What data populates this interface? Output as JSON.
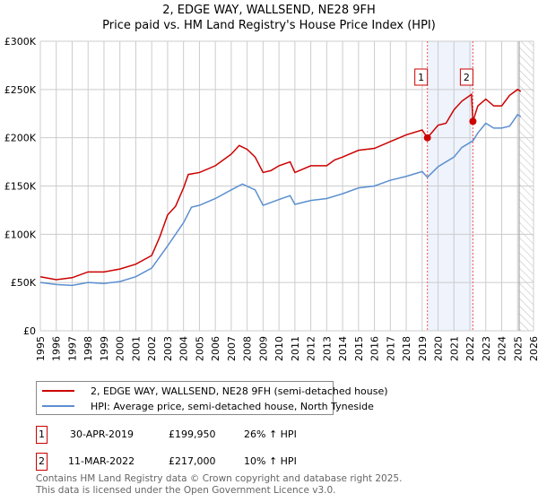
{
  "title": "2, EDGE WAY, WALLSEND, NE28 9FH",
  "subtitle": "Price paid vs. HM Land Registry's House Price Index (HPI)",
  "chart_data": {
    "type": "line",
    "xlim": [
      1995,
      2026
    ],
    "ylim": [
      0,
      300000
    ],
    "yticks": [
      0,
      50000,
      100000,
      150000,
      200000,
      250000,
      300000
    ],
    "ytick_labels": [
      "£0",
      "£50K",
      "£100K",
      "£150K",
      "£200K",
      "£250K",
      "£300K"
    ],
    "xtick_labels": [
      "1995",
      "1996",
      "1997",
      "1998",
      "1999",
      "2000",
      "2001",
      "2002",
      "2003",
      "2004",
      "2005",
      "2006",
      "2007",
      "2008",
      "2009",
      "2010",
      "2011",
      "2012",
      "2013",
      "2014",
      "2015",
      "2016",
      "2017",
      "2018",
      "2019",
      "2020",
      "2021",
      "2022",
      "2023",
      "2024",
      "2025",
      "2026"
    ],
    "grid": true,
    "shaded_range": [
      2019.33,
      2022.19
    ],
    "forecast_hatch_from": 2025.1,
    "series": [
      {
        "name": "2, EDGE WAY, WALLSEND, NE28 9FH (semi-detached house)",
        "color": "#cc0000",
        "x": [
          1995,
          1996,
          1997,
          1998,
          1999,
          2000,
          2001,
          2002,
          2002.5,
          2003,
          2003.5,
          2004,
          2004.3,
          2005,
          2006,
          2007,
          2007.5,
          2008,
          2008.5,
          2009,
          2009.5,
          2010,
          2010.7,
          2011,
          2012,
          2013,
          2013.5,
          2014,
          2015,
          2016,
          2017,
          2018,
          2019,
          2019.33,
          2020,
          2020.5,
          2021,
          2021.5,
          2022.1,
          2022.19,
          2022.5,
          2023,
          2023.5,
          2024,
          2024.5,
          2025,
          2025.2
        ],
        "y": [
          56000,
          53000,
          55000,
          61000,
          61000,
          64000,
          69000,
          78000,
          97000,
          120000,
          129000,
          148000,
          162000,
          164000,
          171000,
          183000,
          192000,
          188000,
          180000,
          164000,
          166000,
          171000,
          175000,
          164000,
          171000,
          171000,
          177000,
          180000,
          187000,
          189000,
          196000,
          203000,
          208000,
          199950,
          213000,
          215000,
          229000,
          238000,
          245000,
          217000,
          233000,
          240000,
          233000,
          233000,
          244000,
          250000,
          248000
        ]
      },
      {
        "name": "HPI: Average price, semi-detached house, North Tyneside",
        "color": "#5b8fd0",
        "x": [
          1995,
          1996,
          1997,
          1998,
          1999,
          2000,
          2001,
          2002,
          2003,
          2004,
          2004.5,
          2005,
          2006,
          2007,
          2007.7,
          2008.5,
          2009,
          2010,
          2010.7,
          2011,
          2012,
          2013,
          2014,
          2015,
          2016,
          2017,
          2018,
          2019,
          2019.33,
          2020,
          2021,
          2021.5,
          2022.2,
          2022.5,
          2023,
          2023.5,
          2024,
          2024.5,
          2025,
          2025.2
        ],
        "y": [
          50000,
          48000,
          47000,
          50000,
          49000,
          51000,
          56000,
          65000,
          88000,
          112000,
          128000,
          130000,
          137000,
          146000,
          152000,
          146000,
          130000,
          136000,
          140000,
          131000,
          135000,
          137000,
          142000,
          148000,
          150000,
          156000,
          160000,
          165000,
          159000,
          170000,
          180000,
          190000,
          197000,
          205000,
          215000,
          210000,
          210000,
          212000,
          224000,
          222000
        ]
      }
    ],
    "annotations": [
      {
        "label": "1",
        "x": 2019.33,
        "y": 199950
      },
      {
        "label": "2",
        "x": 2022.19,
        "y": 217000
      }
    ]
  },
  "legend": {
    "items": [
      "2, EDGE WAY, WALLSEND, NE28 9FH (semi-detached house)",
      "HPI: Average price, semi-detached house, North Tyneside"
    ]
  },
  "transactions": [
    {
      "num": "1",
      "date": "30-APR-2019",
      "price": "£199,950",
      "hpi": "26% ↑ HPI"
    },
    {
      "num": "2",
      "date": "11-MAR-2022",
      "price": "£217,000",
      "hpi": "10% ↑ HPI"
    }
  ],
  "footer": [
    "Contains HM Land Registry data © Crown copyright and database right 2025.",
    "This data is licensed under the Open Government Licence v3.0."
  ]
}
